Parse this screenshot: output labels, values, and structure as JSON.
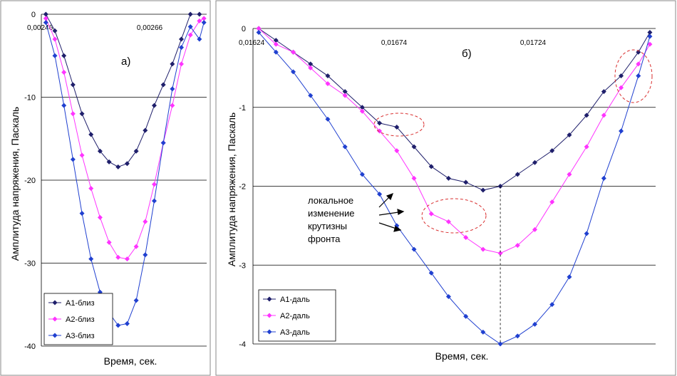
{
  "ylabel": "Амплитуда напряжения, Паскаль",
  "colors": {
    "A1": "#1f1f6b",
    "A2": "#ff33ff",
    "A3": "#2040d0"
  },
  "chart_data": [
    {
      "type": "line",
      "panel_label": "а)",
      "xlabel": "Время, сек.",
      "x_ticks": [
        "0,00246",
        "0,00266"
      ],
      "y_ticks": [
        "0",
        "-10",
        "-20",
        "-30",
        "-40"
      ],
      "ylim": [
        -40,
        0
      ],
      "xlim": [
        0.00246,
        0.002826
      ],
      "grid": "horizontal",
      "legend_position": "bottom-left",
      "series": [
        {
          "name": "A1-близ",
          "color": "#1f1f6b",
          "x": [
            0.00247,
            0.00249,
            0.00251,
            0.00253,
            0.00255,
            0.00257,
            0.00259,
            0.00261,
            0.00263,
            0.00265,
            0.00267,
            0.00269,
            0.00271,
            0.00273,
            0.00275,
            0.00277,
            0.00279,
            0.00281
          ],
          "values": [
            0,
            -2,
            -5,
            -8.5,
            -12,
            -14.5,
            -16.5,
            -17.8,
            -18.4,
            -18,
            -16.5,
            -14,
            -11,
            -8.5,
            -6,
            -3,
            0,
            0
          ]
        },
        {
          "name": "A2-близ",
          "color": "#ff33ff",
          "x": [
            0.00247,
            0.00249,
            0.00251,
            0.00253,
            0.00255,
            0.00257,
            0.00259,
            0.00261,
            0.00263,
            0.00265,
            0.00267,
            0.00269,
            0.00271,
            0.00273,
            0.00275,
            0.00277,
            0.00279,
            0.00281,
            0.00282
          ],
          "values": [
            -0.5,
            -3,
            -7,
            -12,
            -17,
            -21,
            -24.5,
            -27.5,
            -29.3,
            -29.5,
            -28,
            -25,
            -20.5,
            -15.5,
            -11,
            -6,
            -2.5,
            -0.8,
            -0.5
          ]
        },
        {
          "name": "A3-близ",
          "color": "#2040d0",
          "x": [
            0.00247,
            0.00249,
            0.00251,
            0.00253,
            0.00255,
            0.00257,
            0.00259,
            0.00261,
            0.00263,
            0.00265,
            0.00267,
            0.00269,
            0.00271,
            0.00273,
            0.00275,
            0.00277,
            0.00279,
            0.00281,
            0.00282
          ],
          "values": [
            -1,
            -5,
            -11,
            -17.5,
            -24,
            -29.5,
            -33.5,
            -36,
            -37.5,
            -37.3,
            -34.5,
            -29,
            -22.5,
            -15.5,
            -9,
            -4,
            -1.5,
            -3,
            -1
          ]
        }
      ]
    },
    {
      "type": "line",
      "panel_label": "б)",
      "xlabel": "Время, сек.",
      "x_ticks": [
        "0,01624",
        "0,01674",
        "0,01724"
      ],
      "y_ticks": [
        "0",
        "-1",
        "-2",
        "-3",
        "-4"
      ],
      "ylim": [
        -4,
        0
      ],
      "xlim": [
        0.01624,
        0.01764
      ],
      "grid": "horizontal",
      "legend_position": "bottom-left",
      "annotation": "локальное изменение крутизны фронта",
      "series": [
        {
          "name": "A1-даль",
          "color": "#1f1f6b",
          "x": [
            0.01626,
            0.01632,
            0.01638,
            0.01644,
            0.0165,
            0.01656,
            0.01662,
            0.01668,
            0.01674,
            0.0168,
            0.01686,
            0.01692,
            0.01698,
            0.01704,
            0.0171,
            0.01716,
            0.01722,
            0.01728,
            0.01734,
            0.0174,
            0.01746,
            0.01752,
            0.01758,
            0.01762
          ],
          "values": [
            0,
            -0.15,
            -0.3,
            -0.45,
            -0.6,
            -0.8,
            -1.0,
            -1.2,
            -1.25,
            -1.5,
            -1.75,
            -1.9,
            -1.95,
            -2.05,
            -2.0,
            -1.85,
            -1.7,
            -1.55,
            -1.35,
            -1.1,
            -0.8,
            -0.6,
            -0.3,
            -0.05
          ]
        },
        {
          "name": "A2-даль",
          "color": "#ff33ff",
          "x": [
            0.01626,
            0.01632,
            0.01638,
            0.01644,
            0.0165,
            0.01656,
            0.01662,
            0.01668,
            0.01674,
            0.0168,
            0.01686,
            0.01692,
            0.01698,
            0.01704,
            0.0171,
            0.01716,
            0.01722,
            0.01728,
            0.01734,
            0.0174,
            0.01746,
            0.01752,
            0.01758,
            0.01762
          ],
          "values": [
            0,
            -0.2,
            -0.3,
            -0.5,
            -0.7,
            -0.85,
            -1.05,
            -1.3,
            -1.55,
            -1.9,
            -2.35,
            -2.45,
            -2.65,
            -2.8,
            -2.85,
            -2.75,
            -2.55,
            -2.2,
            -1.85,
            -1.5,
            -1.1,
            -0.75,
            -0.45,
            -0.2
          ]
        },
        {
          "name": "A3-даль",
          "color": "#2040d0",
          "x": [
            0.01626,
            0.01632,
            0.01638,
            0.01644,
            0.0165,
            0.01656,
            0.01662,
            0.01668,
            0.01674,
            0.0168,
            0.01686,
            0.01692,
            0.01698,
            0.01704,
            0.0171,
            0.01716,
            0.01722,
            0.01728,
            0.01734,
            0.0174,
            0.01746,
            0.01752,
            0.01758,
            0.01762
          ],
          "values": [
            -0.05,
            -0.3,
            -0.55,
            -0.85,
            -1.15,
            -1.5,
            -1.85,
            -2.1,
            -2.5,
            -2.8,
            -3.1,
            -3.4,
            -3.65,
            -3.85,
            -4.0,
            -3.9,
            -3.75,
            -3.5,
            -3.15,
            -2.6,
            -1.9,
            -1.3,
            -0.6,
            -0.1
          ]
        }
      ]
    }
  ]
}
